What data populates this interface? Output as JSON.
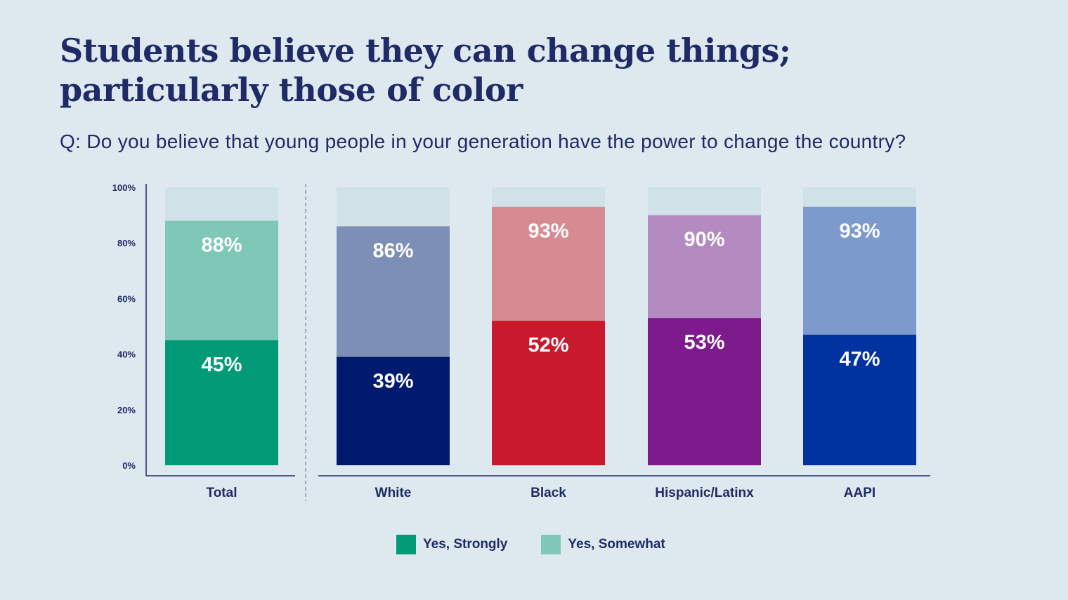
{
  "title_line1": "Students believe they can change things;",
  "title_line2": "particularly those of color",
  "question": "Q: Do you believe that young people in your generation have the power to change the country?",
  "legend": [
    {
      "label": "Yes, Strongly",
      "color": "#009a76"
    },
    {
      "label": "Yes, Somewhat",
      "color": "#7fc8b7"
    }
  ],
  "chart_data": {
    "type": "bar",
    "stacked": true,
    "categories": [
      "Total",
      "White",
      "Black",
      "Hispanic/Latinx",
      "AAPI"
    ],
    "series": [
      {
        "name": "Yes, Strongly",
        "values": [
          45,
          39,
          52,
          53,
          47
        ]
      },
      {
        "name": "Yes, Somewhat",
        "values": [
          43,
          47,
          41,
          37,
          46
        ]
      }
    ],
    "total_labels": [
      "88%",
      "86%",
      "93%",
      "90%",
      "93%"
    ],
    "strong_labels": [
      "45%",
      "39%",
      "52%",
      "53%",
      "47%"
    ],
    "colors": [
      {
        "strong": "#009a76",
        "somewhat": "#7fc8b7"
      },
      {
        "strong": "#001a6e",
        "somewhat": "#7d8fb6"
      },
      {
        "strong": "#c8192d",
        "somewhat": "#d68b93"
      },
      {
        "strong": "#7d1a8c",
        "somewhat": "#b38bc0"
      },
      {
        "strong": "#0032a0",
        "somewhat": "#7d9acd"
      }
    ],
    "background_bar_color": "#d0e2e8",
    "ylim": [
      0,
      100
    ],
    "yticks": [
      "0%",
      "20%",
      "40%",
      "60%",
      "80%",
      "100%"
    ],
    "grid": false,
    "legend_position": "bottom"
  }
}
